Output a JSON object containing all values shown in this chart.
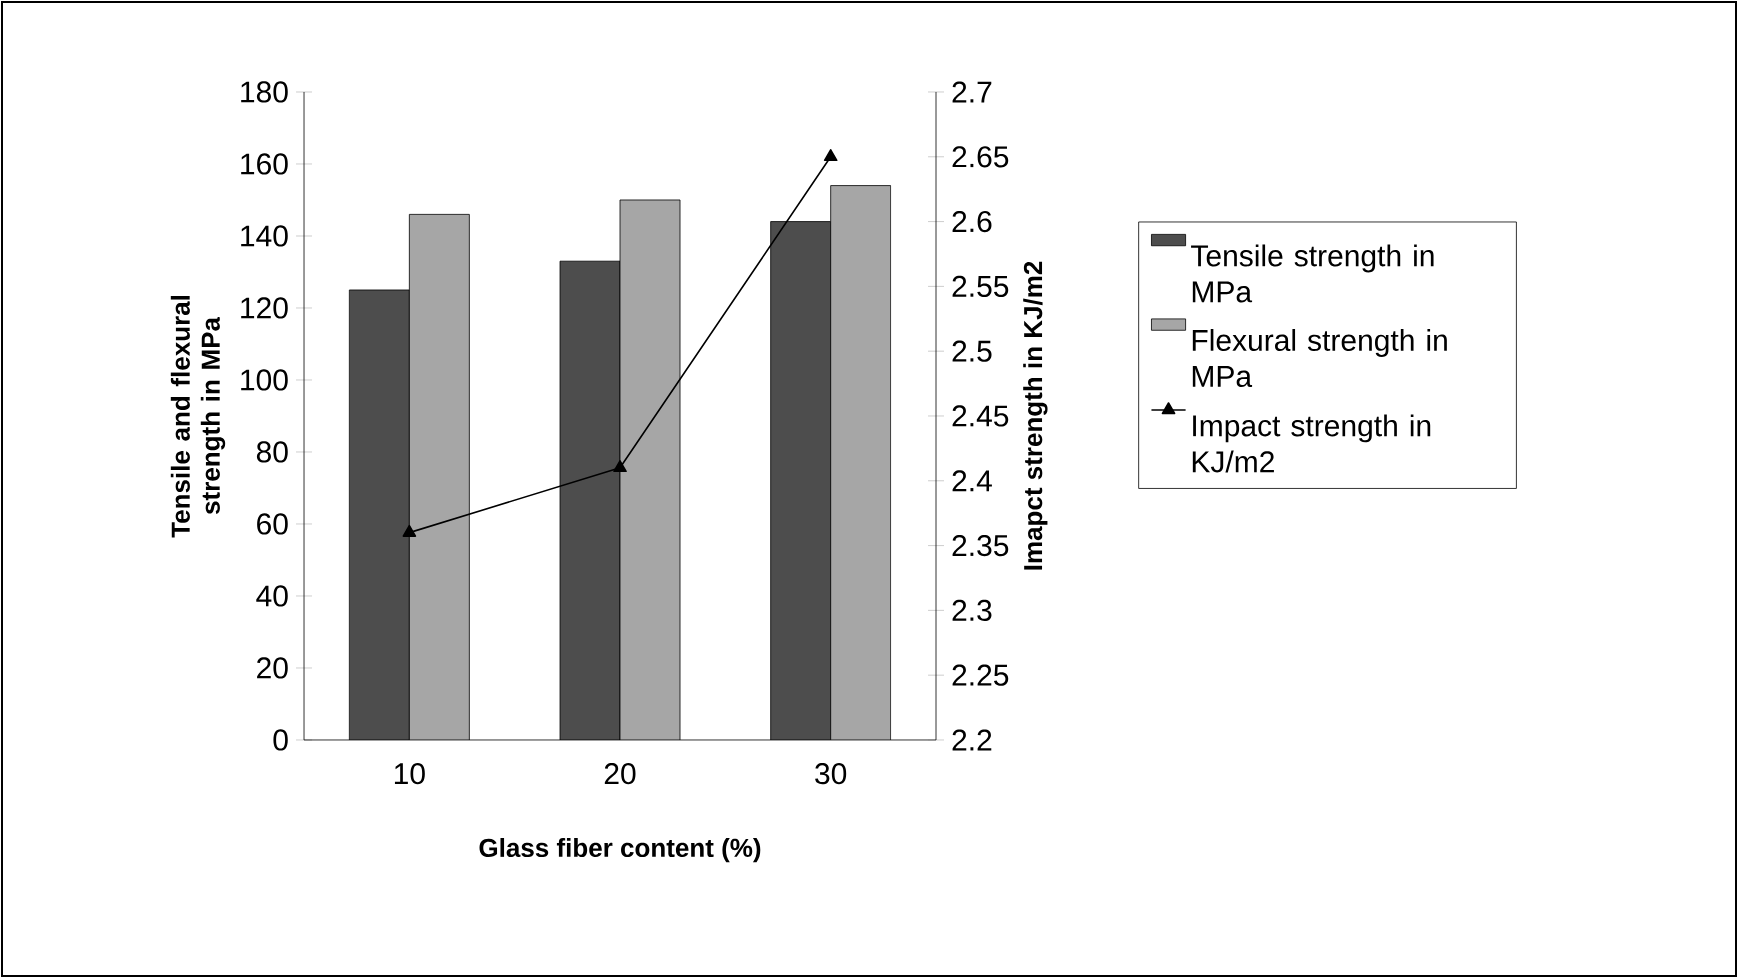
{
  "chart_data": {
    "type": "bar",
    "xlabel": "Glass fiber content (%)",
    "ylabel": "Tensile and flexural strength in MPa",
    "y2label": "Imapct strength in KJ/m2",
    "categories": [
      "10",
      "20",
      "30"
    ],
    "series": [
      {
        "name": "Tensile strength in MPa",
        "color": "#4d4d4d",
        "values": [
          125,
          133,
          144
        ]
      },
      {
        "name": "Flexural strength in MPa",
        "color": "#a6a6a6",
        "values": [
          146,
          150,
          154
        ]
      },
      {
        "name": "Impact strength in KJ/m2",
        "type": "line",
        "axis": "y2",
        "marker": "triangle",
        "color": "#000000",
        "values": [
          2.36,
          2.41,
          2.65
        ]
      }
    ],
    "ylim": [
      0,
      180
    ],
    "yticks": [
      0,
      20,
      40,
      60,
      80,
      100,
      120,
      140,
      160,
      180
    ],
    "y2lim": [
      2.2,
      2.7
    ],
    "y2ticks": [
      2.2,
      2.25,
      2.3,
      2.35,
      2.4,
      2.45,
      2.5,
      2.55,
      2.6,
      2.65,
      2.7
    ],
    "legend": "right",
    "grid": false
  }
}
